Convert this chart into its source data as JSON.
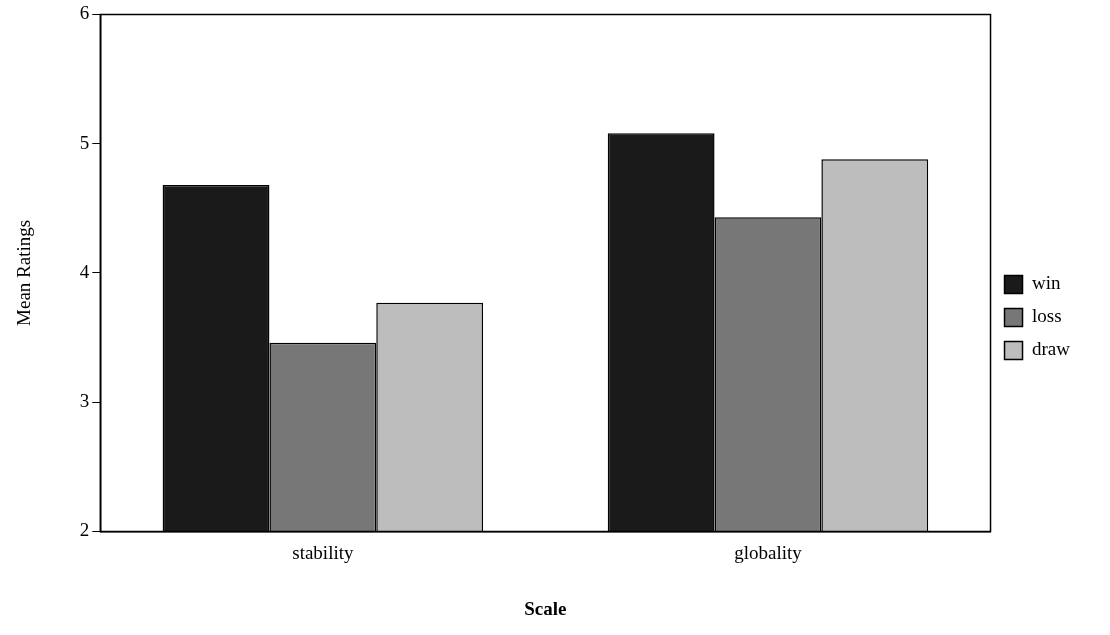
{
  "chart_data": {
    "type": "bar",
    "xlabel": "Scale",
    "ylabel": "Mean Ratings",
    "categories": [
      "stability",
      "globality"
    ],
    "series": [
      {
        "name": "win",
        "color": "#1a1a1a",
        "values": [
          4.68,
          5.08
        ]
      },
      {
        "name": "loss",
        "color": "#777777",
        "values": [
          3.46,
          4.43
        ]
      },
      {
        "name": "draw",
        "color": "#bdbdbd",
        "values": [
          3.77,
          4.88
        ]
      }
    ],
    "ylim": [
      2,
      6
    ],
    "yticks": [
      2,
      3,
      4,
      5,
      6
    ],
    "grid": false,
    "legend": "right"
  }
}
